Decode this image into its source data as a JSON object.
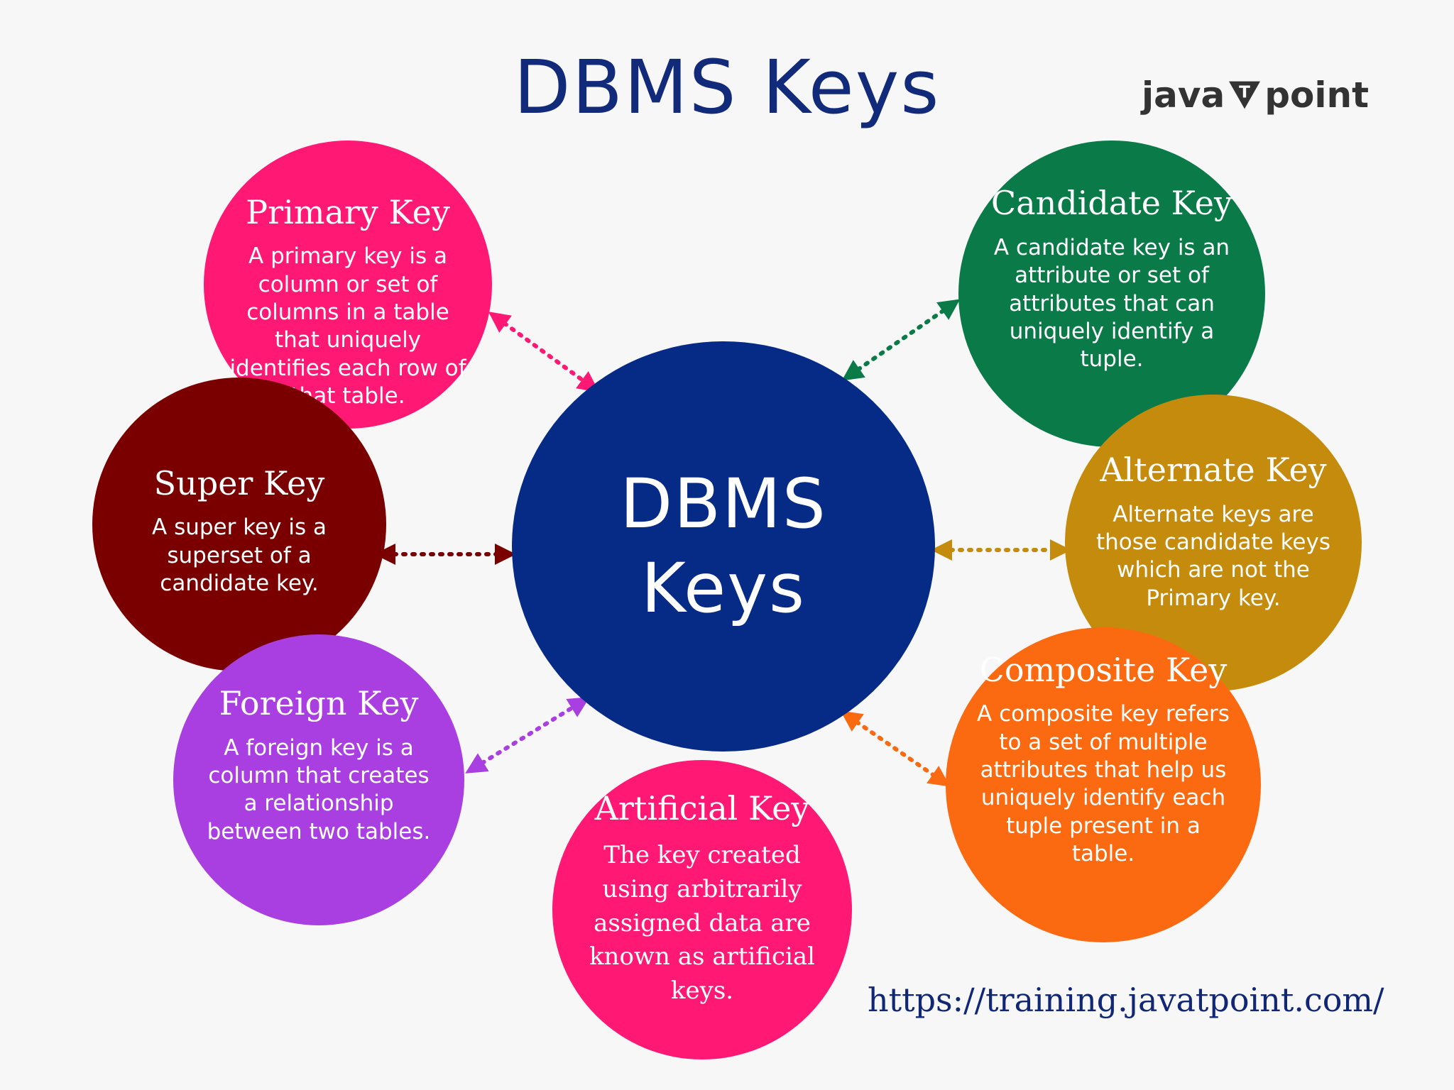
{
  "title": "DBMS Keys",
  "logo": {
    "left": "java",
    "mark": "T",
    "right": "point"
  },
  "center": {
    "line1": "DBMS",
    "line2": "Keys"
  },
  "keys": {
    "primary": {
      "title": "Primary Key",
      "desc": "A primary key is a column or set of columns in a table that uniquely identifies each row of that table.",
      "color": "#ff1874"
    },
    "super": {
      "title": "Super Key",
      "desc": "A super key is a superset of a candidate key.",
      "color": "#7a0000"
    },
    "foreign": {
      "title": "Foreign Key",
      "desc": "A foreign key is a column that creates a relationship between two tables.",
      "color": "#a93fe0"
    },
    "artificial": {
      "title": "Artificial Key",
      "desc": "The key created using arbitrarily assigned data are known as artificial keys.",
      "color": "#ff1874"
    },
    "candidate": {
      "title": "Candidate Key",
      "desc": "A candidate key is an attribute or set of attributes that can uniquely identify a tuple.",
      "color": "#0a7a48"
    },
    "alternate": {
      "title": "Alternate Key",
      "desc": "Alternate keys are those candidate keys which are not the Primary key.",
      "color": "#c58b0c"
    },
    "composite": {
      "title": "Composite Key",
      "desc": "A composite key refers to a set of multiple attributes that help us uniquely identify each tuple present in a table.",
      "color": "#fb6a10"
    }
  },
  "url": "https://training.javatpoint.com/",
  "colors": {
    "title": "#122a7a",
    "center": "#062b86",
    "background": "#f7f7f7"
  }
}
